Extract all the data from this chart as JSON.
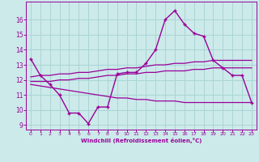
{
  "main_x": [
    0,
    1,
    2,
    3,
    4,
    5,
    6,
    7,
    8,
    9,
    10,
    11,
    12,
    13,
    14,
    15,
    16,
    17,
    18,
    19,
    20,
    21,
    22,
    23
  ],
  "main_y": [
    13.4,
    12.3,
    11.7,
    11.0,
    9.8,
    9.8,
    9.1,
    10.2,
    10.2,
    12.4,
    12.5,
    12.5,
    13.1,
    14.0,
    16.0,
    16.6,
    15.7,
    15.1,
    14.9,
    13.3,
    12.8,
    12.3,
    12.3,
    10.5
  ],
  "upper_x": [
    0,
    1,
    2,
    3,
    4,
    5,
    6,
    7,
    8,
    9,
    10,
    11,
    12,
    13,
    14,
    15,
    16,
    17,
    18,
    19,
    20,
    21,
    22,
    23
  ],
  "upper_y": [
    12.2,
    12.3,
    12.3,
    12.4,
    12.4,
    12.5,
    12.5,
    12.6,
    12.7,
    12.7,
    12.8,
    12.8,
    12.9,
    13.0,
    13.0,
    13.1,
    13.1,
    13.2,
    13.2,
    13.3,
    13.3,
    13.3,
    13.3,
    13.3
  ],
  "mid_x": [
    0,
    1,
    2,
    3,
    4,
    5,
    6,
    7,
    8,
    9,
    10,
    11,
    12,
    13,
    14,
    15,
    16,
    17,
    18,
    19,
    20,
    21,
    22,
    23
  ],
  "mid_y": [
    11.9,
    11.9,
    11.9,
    12.0,
    12.0,
    12.1,
    12.1,
    12.2,
    12.3,
    12.3,
    12.4,
    12.4,
    12.5,
    12.5,
    12.6,
    12.6,
    12.6,
    12.7,
    12.7,
    12.8,
    12.8,
    12.8,
    12.8,
    12.8
  ],
  "lower_x": [
    0,
    1,
    2,
    3,
    4,
    5,
    6,
    7,
    8,
    9,
    10,
    11,
    12,
    13,
    14,
    15,
    16,
    17,
    18,
    19,
    20,
    21,
    22,
    23
  ],
  "lower_y": [
    11.7,
    11.6,
    11.5,
    11.4,
    11.3,
    11.2,
    11.1,
    11.0,
    10.9,
    10.8,
    10.8,
    10.7,
    10.7,
    10.6,
    10.6,
    10.6,
    10.5,
    10.5,
    10.5,
    10.5,
    10.5,
    10.5,
    10.5,
    10.5
  ],
  "line_color": "#990099",
  "bg_color": "#cceaea",
  "grid_color": "#aad4d4",
  "xlabel": "Windchill (Refroidissement éolien,°C)",
  "xlim": [
    -0.5,
    23.5
  ],
  "ylim": [
    8.7,
    17.2
  ],
  "yticks": [
    9,
    10,
    11,
    12,
    13,
    14,
    15,
    16
  ],
  "xticks": [
    0,
    1,
    2,
    3,
    4,
    5,
    6,
    7,
    8,
    9,
    10,
    11,
    12,
    13,
    14,
    15,
    16,
    17,
    18,
    19,
    20,
    21,
    22,
    23
  ]
}
